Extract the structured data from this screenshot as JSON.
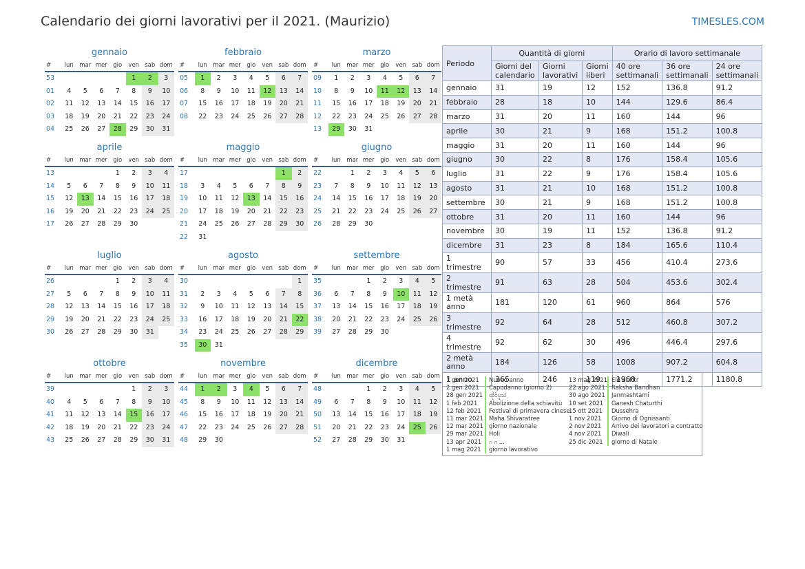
{
  "title": "Calendario dei giorni lavorativi per il 2021. (Maurizio)",
  "site": "TIMESLES.COM",
  "weekday_headers": [
    "#",
    "lun",
    "mar",
    "mer",
    "gio",
    "ven",
    "sab",
    "dom"
  ],
  "months": [
    {
      "name": "gennaio",
      "rows": [
        [
          "53",
          "",
          "",
          "",
          "",
          "1",
          "2",
          "3"
        ],
        [
          "01",
          "4",
          "5",
          "6",
          "7",
          "8",
          "9",
          "10"
        ],
        [
          "02",
          "11",
          "12",
          "13",
          "14",
          "15",
          "16",
          "17"
        ],
        [
          "03",
          "18",
          "19",
          "20",
          "21",
          "22",
          "23",
          "24"
        ],
        [
          "04",
          "25",
          "26",
          "27",
          "28",
          "29",
          "30",
          "31"
        ]
      ],
      "holidays": [
        "1",
        "2",
        "28"
      ]
    },
    {
      "name": "febbraio",
      "rows": [
        [
          "05",
          "1",
          "2",
          "3",
          "4",
          "5",
          "6",
          "7"
        ],
        [
          "06",
          "8",
          "9",
          "10",
          "11",
          "12",
          "13",
          "14"
        ],
        [
          "07",
          "15",
          "16",
          "17",
          "18",
          "19",
          "20",
          "21"
        ],
        [
          "08",
          "22",
          "23",
          "24",
          "25",
          "26",
          "27",
          "28"
        ]
      ],
      "holidays": [
        "1",
        "12"
      ]
    },
    {
      "name": "marzo",
      "rows": [
        [
          "09",
          "1",
          "2",
          "3",
          "4",
          "5",
          "6",
          "7"
        ],
        [
          "10",
          "8",
          "9",
          "10",
          "11",
          "12",
          "13",
          "14"
        ],
        [
          "11",
          "15",
          "16",
          "17",
          "18",
          "19",
          "20",
          "21"
        ],
        [
          "12",
          "22",
          "23",
          "24",
          "25",
          "26",
          "27",
          "28"
        ],
        [
          "13",
          "29",
          "30",
          "31",
          "",
          "",
          "",
          ""
        ]
      ],
      "holidays": [
        "11",
        "12",
        "29"
      ]
    },
    {
      "name": "aprile",
      "rows": [
        [
          "13",
          "",
          "",
          "",
          "1",
          "2",
          "3",
          "4"
        ],
        [
          "14",
          "5",
          "6",
          "7",
          "8",
          "9",
          "10",
          "11"
        ],
        [
          "15",
          "12",
          "13",
          "14",
          "15",
          "16",
          "17",
          "18"
        ],
        [
          "16",
          "19",
          "20",
          "21",
          "22",
          "23",
          "24",
          "25"
        ],
        [
          "17",
          "26",
          "27",
          "28",
          "29",
          "30",
          "",
          ""
        ]
      ],
      "holidays": [
        "13"
      ]
    },
    {
      "name": "maggio",
      "rows": [
        [
          "17",
          "",
          "",
          "",
          "",
          "",
          "1",
          "2"
        ],
        [
          "18",
          "3",
          "4",
          "5",
          "6",
          "7",
          "8",
          "9"
        ],
        [
          "19",
          "10",
          "11",
          "12",
          "13",
          "14",
          "15",
          "16"
        ],
        [
          "20",
          "17",
          "18",
          "19",
          "20",
          "21",
          "22",
          "23"
        ],
        [
          "21",
          "24",
          "25",
          "26",
          "27",
          "28",
          "29",
          "30"
        ],
        [
          "22",
          "31",
          "",
          "",
          "",
          "",
          "",
          ""
        ]
      ],
      "holidays": [
        "1",
        "13"
      ]
    },
    {
      "name": "giugno",
      "rows": [
        [
          "22",
          "",
          "1",
          "2",
          "3",
          "4",
          "5",
          "6"
        ],
        [
          "23",
          "7",
          "8",
          "9",
          "10",
          "11",
          "12",
          "13"
        ],
        [
          "24",
          "14",
          "15",
          "16",
          "17",
          "18",
          "19",
          "20"
        ],
        [
          "25",
          "21",
          "22",
          "23",
          "24",
          "25",
          "26",
          "27"
        ],
        [
          "26",
          "28",
          "29",
          "30",
          "",
          "",
          "",
          ""
        ]
      ],
      "holidays": []
    },
    {
      "name": "luglio",
      "rows": [
        [
          "26",
          "",
          "",
          "",
          "1",
          "2",
          "3",
          "4"
        ],
        [
          "27",
          "5",
          "6",
          "7",
          "8",
          "9",
          "10",
          "11"
        ],
        [
          "28",
          "12",
          "13",
          "14",
          "15",
          "16",
          "17",
          "18"
        ],
        [
          "29",
          "19",
          "20",
          "21",
          "22",
          "23",
          "24",
          "25"
        ],
        [
          "30",
          "26",
          "27",
          "28",
          "29",
          "30",
          "31",
          ""
        ]
      ],
      "holidays": []
    },
    {
      "name": "agosto",
      "rows": [
        [
          "30",
          "",
          "",
          "",
          "",
          "",
          "",
          "1"
        ],
        [
          "31",
          "2",
          "3",
          "4",
          "5",
          "6",
          "7",
          "8"
        ],
        [
          "32",
          "9",
          "10",
          "11",
          "12",
          "13",
          "14",
          "15"
        ],
        [
          "33",
          "16",
          "17",
          "18",
          "19",
          "20",
          "21",
          "22"
        ],
        [
          "34",
          "23",
          "24",
          "25",
          "26",
          "27",
          "28",
          "29"
        ],
        [
          "35",
          "30",
          "31",
          "",
          "",
          "",
          "",
          ""
        ]
      ],
      "holidays": [
        "22",
        "30"
      ]
    },
    {
      "name": "settembre",
      "rows": [
        [
          "35",
          "",
          "",
          "1",
          "2",
          "3",
          "4",
          "5"
        ],
        [
          "36",
          "6",
          "7",
          "8",
          "9",
          "10",
          "11",
          "12"
        ],
        [
          "37",
          "13",
          "14",
          "15",
          "16",
          "17",
          "18",
          "19"
        ],
        [
          "38",
          "20",
          "21",
          "22",
          "23",
          "24",
          "25",
          "26"
        ],
        [
          "39",
          "27",
          "28",
          "29",
          "30",
          "",
          "",
          ""
        ]
      ],
      "holidays": [
        "10"
      ]
    },
    {
      "name": "ottobre",
      "rows": [
        [
          "39",
          "",
          "",
          "",
          "",
          "1",
          "2",
          "3"
        ],
        [
          "40",
          "4",
          "5",
          "6",
          "7",
          "8",
          "9",
          "10"
        ],
        [
          "41",
          "11",
          "12",
          "13",
          "14",
          "15",
          "16",
          "17"
        ],
        [
          "42",
          "18",
          "19",
          "20",
          "21",
          "22",
          "23",
          "24"
        ],
        [
          "43",
          "25",
          "26",
          "27",
          "28",
          "29",
          "30",
          "31"
        ]
      ],
      "holidays": [
        "15"
      ]
    },
    {
      "name": "novembre",
      "rows": [
        [
          "44",
          "1",
          "2",
          "3",
          "4",
          "5",
          "6",
          "7"
        ],
        [
          "45",
          "8",
          "9",
          "10",
          "11",
          "12",
          "13",
          "14"
        ],
        [
          "46",
          "15",
          "16",
          "17",
          "18",
          "19",
          "20",
          "21"
        ],
        [
          "47",
          "22",
          "23",
          "24",
          "25",
          "26",
          "27",
          "28"
        ],
        [
          "48",
          "29",
          "30",
          "",
          "",
          "",
          "",
          ""
        ]
      ],
      "holidays": [
        "1",
        "2",
        "4"
      ]
    },
    {
      "name": "dicembre",
      "rows": [
        [
          "48",
          "",
          "",
          "1",
          "2",
          "3",
          "4",
          "5"
        ],
        [
          "49",
          "6",
          "7",
          "8",
          "9",
          "10",
          "11",
          "12"
        ],
        [
          "50",
          "13",
          "14",
          "15",
          "16",
          "17",
          "18",
          "19"
        ],
        [
          "51",
          "20",
          "21",
          "22",
          "23",
          "24",
          "25",
          "26"
        ],
        [
          "52",
          "27",
          "28",
          "29",
          "30",
          "31",
          "",
          ""
        ]
      ],
      "holidays": [
        "25"
      ]
    }
  ],
  "summary": {
    "col_periodo": "Periodo",
    "group_days": "Quantità di giorni",
    "group_hours": "Orario di lavoro settimanale",
    "sub_headers": [
      "Giorni del calendario",
      "Giorni lavorativi",
      "Giorni liberi",
      "40 ore settimanali",
      "36 ore settimanali",
      "24 ore settimanali"
    ],
    "rows": [
      [
        "gennaio",
        "31",
        "19",
        "12",
        "152",
        "136.8",
        "91.2"
      ],
      [
        "febbraio",
        "28",
        "18",
        "10",
        "144",
        "129.6",
        "86.4"
      ],
      [
        "marzo",
        "31",
        "20",
        "11",
        "160",
        "144",
        "96"
      ],
      [
        "aprile",
        "30",
        "21",
        "9",
        "168",
        "151.2",
        "100.8"
      ],
      [
        "maggio",
        "31",
        "20",
        "11",
        "160",
        "144",
        "96"
      ],
      [
        "giugno",
        "30",
        "22",
        "8",
        "176",
        "158.4",
        "105.6"
      ],
      [
        "luglio",
        "31",
        "22",
        "9",
        "176",
        "158.4",
        "105.6"
      ],
      [
        "agosto",
        "31",
        "21",
        "10",
        "168",
        "151.2",
        "100.8"
      ],
      [
        "settembre",
        "30",
        "21",
        "9",
        "168",
        "151.2",
        "100.8"
      ],
      [
        "ottobre",
        "31",
        "20",
        "11",
        "160",
        "144",
        "96"
      ],
      [
        "novembre",
        "30",
        "19",
        "11",
        "152",
        "136.8",
        "91.2"
      ],
      [
        "dicembre",
        "31",
        "23",
        "8",
        "184",
        "165.6",
        "110.4"
      ],
      [
        "1 trimestre",
        "90",
        "57",
        "33",
        "456",
        "410.4",
        "273.6"
      ],
      [
        "2 trimestre",
        "91",
        "63",
        "28",
        "504",
        "453.6",
        "302.4"
      ],
      [
        "1 metà anno",
        "181",
        "120",
        "61",
        "960",
        "864",
        "576"
      ],
      [
        "3 trimestre",
        "92",
        "64",
        "28",
        "512",
        "460.8",
        "307.2"
      ],
      [
        "4 trimestre",
        "92",
        "62",
        "30",
        "496",
        "446.4",
        "297.6"
      ],
      [
        "2 metà anno",
        "184",
        "126",
        "58",
        "1008",
        "907.2",
        "604.8"
      ],
      [
        "1 anno",
        "365",
        "246",
        "119",
        "1968",
        "1771.2",
        "1180.8"
      ]
    ]
  },
  "legend": {
    "left": [
      [
        "1 gen 2021",
        "Nuovo anno"
      ],
      [
        "2 gen 2021",
        "Capodanno (giorno 2)"
      ],
      [
        "28 gen 2021",
        "ထိုင်ပူသံ"
      ],
      [
        "1 feb 2021",
        "Abolizione della schiavitù"
      ],
      [
        "12 feb 2021",
        "Festival di primavera cinese"
      ],
      [
        "11 mar 2021",
        "Maha Shivaratree"
      ],
      [
        "12 mar 2021",
        "giorno nazionale"
      ],
      [
        "29 mar 2021",
        "Holi"
      ],
      [
        "13 apr 2021",
        "ဂ ဂ ..."
      ],
      [
        "1 mag 2021",
        "giorno lavorativo"
      ]
    ],
    "right": [
      [
        "13 mag 2021",
        "Eid al-Fitr"
      ],
      [
        "22 ago 2021",
        "Raksha Bandhan"
      ],
      [
        "30 ago 2021",
        "Janmashtami"
      ],
      [
        "10 set 2021",
        "Ganesh Chaturthi"
      ],
      [
        "15 ott 2021",
        "Dussehra"
      ],
      [
        "1 nov 2021",
        "Giorno di Ognissanti"
      ],
      [
        "2 nov 2021",
        "Arrivo dei lavoratori a contratto"
      ],
      [
        "4 nov 2021",
        "Diwali"
      ],
      [
        "25 dic 2021",
        "giorno di Natale"
      ]
    ]
  },
  "colors": {
    "holiday": "#8de06a",
    "weekend": "#eaeaea",
    "accent": "#2b77b8",
    "header_bg": "#e4e8f4"
  }
}
